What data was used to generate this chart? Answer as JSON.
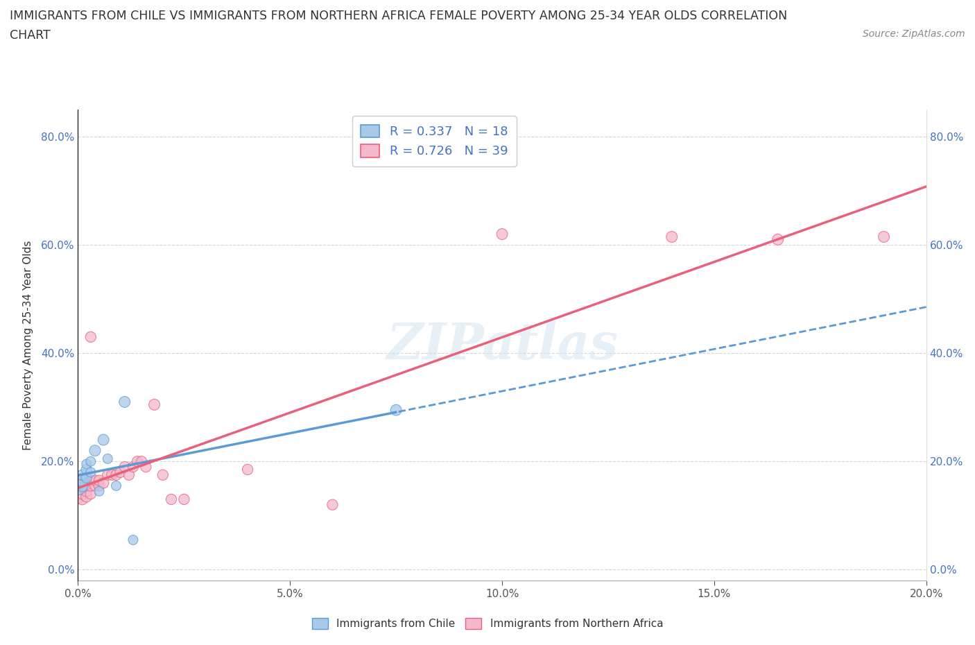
{
  "title_line1": "IMMIGRANTS FROM CHILE VS IMMIGRANTS FROM NORTHERN AFRICA FEMALE POVERTY AMONG 25-34 YEAR OLDS CORRELATION",
  "title_line2": "CHART",
  "source": "Source: ZipAtlas.com",
  "ylabel": "Female Poverty Among 25-34 Year Olds",
  "xlim": [
    0.0,
    0.2
  ],
  "ylim": [
    -0.02,
    0.85
  ],
  "yticks": [
    0.0,
    0.2,
    0.4,
    0.6,
    0.8
  ],
  "xticks": [
    0.0,
    0.05,
    0.1,
    0.15,
    0.2
  ],
  "chile_color": "#aac8e8",
  "chile_line_color": "#5b9bd5",
  "chile_edge_color": "#5b9bd5",
  "nafr_color": "#f4b8cc",
  "nafr_line_color": "#e8607a",
  "nafr_edge_color": "#e8607a",
  "R_chile": 0.337,
  "N_chile": 18,
  "R_nafr": 0.726,
  "N_nafr": 39,
  "chile_x": [
    0.0,
    0.0,
    0.001,
    0.001,
    0.001,
    0.002,
    0.002,
    0.002,
    0.003,
    0.003,
    0.004,
    0.005,
    0.006,
    0.007,
    0.009,
    0.011,
    0.013,
    0.075
  ],
  "chile_y": [
    0.155,
    0.16,
    0.155,
    0.165,
    0.175,
    0.17,
    0.185,
    0.195,
    0.18,
    0.2,
    0.22,
    0.145,
    0.24,
    0.205,
    0.155,
    0.31,
    0.055,
    0.295
  ],
  "nafr_x": [
    0.0,
    0.0,
    0.001,
    0.001,
    0.001,
    0.001,
    0.002,
    0.002,
    0.002,
    0.002,
    0.003,
    0.003,
    0.003,
    0.003,
    0.004,
    0.004,
    0.005,
    0.005,
    0.006,
    0.007,
    0.008,
    0.009,
    0.01,
    0.011,
    0.012,
    0.013,
    0.014,
    0.015,
    0.016,
    0.018,
    0.02,
    0.022,
    0.025,
    0.04,
    0.06,
    0.1,
    0.14,
    0.165,
    0.19
  ],
  "nafr_y": [
    0.135,
    0.145,
    0.13,
    0.14,
    0.155,
    0.16,
    0.135,
    0.145,
    0.155,
    0.165,
    0.14,
    0.155,
    0.165,
    0.43,
    0.155,
    0.165,
    0.155,
    0.165,
    0.16,
    0.175,
    0.175,
    0.175,
    0.18,
    0.19,
    0.175,
    0.19,
    0.2,
    0.2,
    0.19,
    0.305,
    0.175,
    0.13,
    0.13,
    0.185,
    0.12,
    0.62,
    0.615,
    0.61,
    0.615
  ],
  "chile_sizes": [
    350,
    200,
    150,
    150,
    120,
    120,
    120,
    100,
    100,
    100,
    130,
    100,
    130,
    100,
    100,
    130,
    100,
    130
  ],
  "nafr_sizes": [
    200,
    150,
    130,
    130,
    130,
    130,
    130,
    130,
    130,
    130,
    120,
    120,
    120,
    120,
    120,
    120,
    120,
    120,
    120,
    120,
    120,
    120,
    120,
    120,
    120,
    120,
    120,
    120,
    120,
    130,
    120,
    120,
    120,
    120,
    120,
    130,
    130,
    130,
    130
  ]
}
